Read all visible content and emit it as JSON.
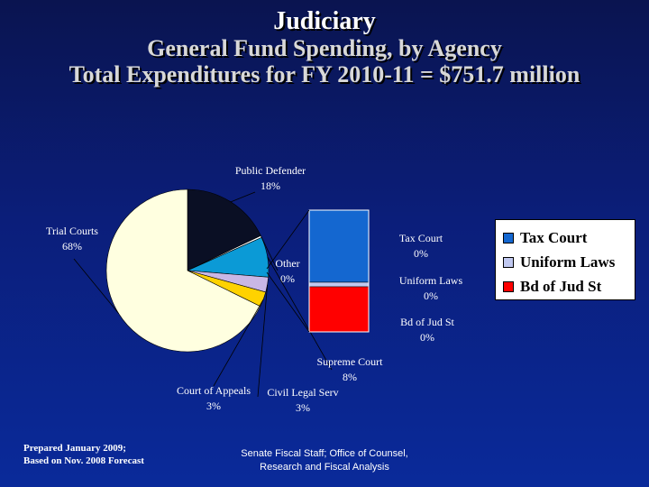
{
  "title": {
    "line1": "Judiciary",
    "line2": "General Fund Spending, by Agency",
    "line3": "Total Expenditures for FY 2010-11 = $751.7 million"
  },
  "chart_data": {
    "type": "pie",
    "pie": {
      "slices": [
        {
          "name": "Public Defender",
          "label": "Public Defender",
          "pct_label": "18%",
          "value": 18,
          "color": "#0a0f24"
        },
        {
          "name": "Other",
          "label": "Other",
          "pct_label": "0%",
          "value": 0.4,
          "color": "#ffffff"
        },
        {
          "name": "Supreme Court",
          "label": "Supreme Court",
          "pct_label": "8%",
          "value": 8,
          "color": "#0b9ad6"
        },
        {
          "name": "Civil Legal Serv",
          "label": "Civil Legal Serv",
          "pct_label": "3%",
          "value": 3,
          "color": "#c9b7e6"
        },
        {
          "name": "Court of Appeals",
          "label": "Court of Appeals",
          "pct_label": "3%",
          "value": 3,
          "color": "#ffd200"
        },
        {
          "name": "Trial Courts",
          "label": "Trial Courts",
          "pct_label": "68%",
          "value": 68,
          "color": "#ffffe0"
        }
      ]
    },
    "breakout": {
      "type": "stacked-bar",
      "segments": [
        {
          "name": "Tax Court",
          "label": "Tax Court",
          "pct_label": "0%",
          "value": 0.32,
          "color": "#1467d0"
        },
        {
          "name": "Uniform Laws",
          "label": "Uniform Laws",
          "pct_label": "0%",
          "value": 0.02,
          "color": "#c0c8f0"
        },
        {
          "name": "Bd of Jud St",
          "label": "Bd of Jud St",
          "pct_label": "0%",
          "value": 0.2,
          "color": "#ff0000"
        }
      ]
    },
    "legend": {
      "placement": "right",
      "items": [
        {
          "label": "Tax Court",
          "color": "#1467d0"
        },
        {
          "label": "Uniform Laws",
          "color": "#c0c8f0"
        },
        {
          "label": "Bd of Jud St",
          "color": "#ff0000"
        }
      ]
    }
  },
  "footer": {
    "left_line1": "Prepared January 2009;",
    "left_line2": "Based on Nov. 2008 Forecast",
    "center_line1": "Senate Fiscal Staff;  Office of Counsel,",
    "center_line2": "Research and Fiscal Analysis"
  }
}
